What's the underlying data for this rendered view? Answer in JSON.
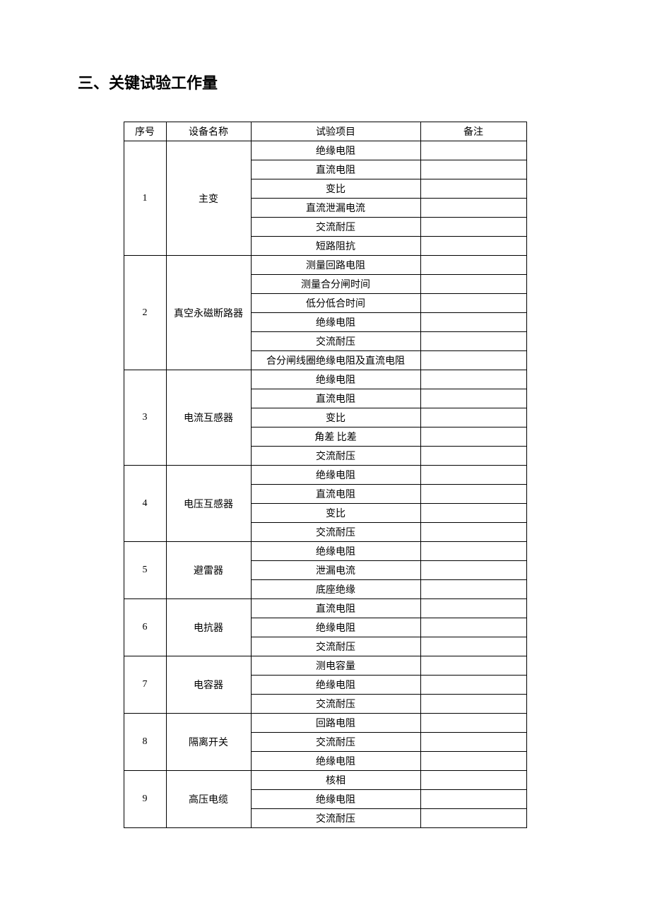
{
  "section_title": "三、关键试验工作量",
  "table": {
    "headers": {
      "seq": "序号",
      "equipment": "设备名称",
      "test_item": "试验项目",
      "note": "备注"
    },
    "groups": [
      {
        "seq": "1",
        "equipment": "主变",
        "tests": [
          "绝缘电阻",
          "直流电阻",
          "变比",
          "直流泄漏电流",
          "交流耐压",
          "短路阻抗"
        ]
      },
      {
        "seq": "2",
        "equipment": "真空永磁断路器",
        "tests": [
          "测量回路电阻",
          "测量合分闸时间",
          "低分低合时间",
          "绝缘电阻",
          "交流耐压",
          "合分闸线圈绝缘电阻及直流电阻"
        ]
      },
      {
        "seq": "3",
        "equipment": "电流互感器",
        "tests": [
          "绝缘电阻",
          "直流电阻",
          "变比",
          "角差 比差",
          "交流耐压"
        ]
      },
      {
        "seq": "4",
        "equipment": "电压互感器",
        "tests": [
          "绝缘电阻",
          "直流电阻",
          "变比",
          "交流耐压"
        ]
      },
      {
        "seq": "5",
        "equipment": "避雷器",
        "tests": [
          "绝缘电阻",
          "泄漏电流",
          "底座绝缘"
        ]
      },
      {
        "seq": "6",
        "equipment": "电抗器",
        "tests": [
          "直流电阻",
          "绝缘电阻",
          "交流耐压"
        ]
      },
      {
        "seq": "7",
        "equipment": "电容器",
        "tests": [
          "测电容量",
          "绝缘电阻",
          "交流耐压"
        ]
      },
      {
        "seq": "8",
        "equipment": "隔离开关",
        "tests": [
          "回路电阻",
          "交流耐压",
          "绝缘电阻"
        ]
      },
      {
        "seq": "9",
        "equipment": "高压电缆",
        "tests": [
          "核相",
          "绝缘电阻",
          "交流耐压"
        ]
      }
    ]
  }
}
